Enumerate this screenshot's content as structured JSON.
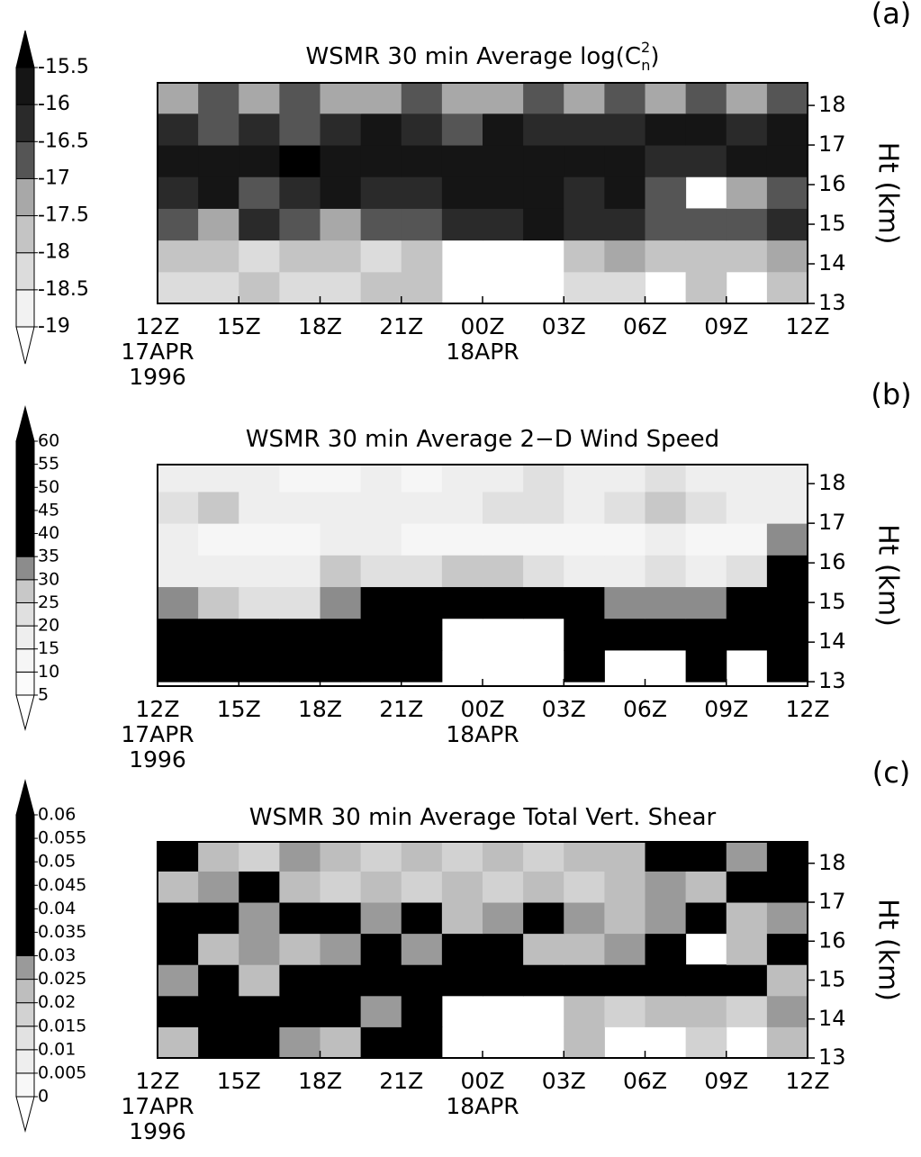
{
  "chart_data": [
    {
      "type": "heatmap",
      "panel_label": "(a)",
      "title": "WSMR 30 min Average log(C",
      "title_superscript": "2",
      "title_subscript": "n",
      "title_end": ")",
      "ylabel": "Ht (km)",
      "xbins": [
        0,
        1.5,
        3,
        4.5,
        6,
        7.5,
        9,
        10.5,
        12,
        13.5,
        15,
        16.5,
        18,
        19.5,
        21,
        22.5,
        24
      ],
      "ybins": [
        13,
        13.8,
        14.6,
        15.4,
        16.2,
        17,
        17.8,
        18.6
      ],
      "z": [
        [
          -18.5,
          -18.5,
          -18,
          -18.5,
          -18.5,
          -18,
          -18,
          null,
          null,
          null,
          -18.5,
          -18.5,
          null,
          -18,
          null,
          -18
        ],
        [
          -18,
          -18,
          -18.5,
          -18,
          -18,
          -18.5,
          -18,
          null,
          null,
          null,
          -18,
          -17.5,
          -18,
          -18,
          -18,
          -17.5
        ],
        [
          -17,
          -17.5,
          -16.5,
          -17,
          -17.5,
          -17,
          -17,
          -16.5,
          -16.5,
          -16,
          -16.5,
          -16.5,
          -17,
          -17,
          -17,
          -16.5
        ],
        [
          -16.5,
          -16,
          -17,
          -16.5,
          -16,
          -16.5,
          -16.5,
          -16,
          -16,
          -16,
          -16.5,
          -16,
          -17,
          null,
          -17.5,
          -17
        ],
        [
          -16,
          -16,
          -16,
          -15.5,
          -16,
          -16,
          -16,
          -16,
          -16,
          -16,
          -16,
          -16,
          -16.5,
          -16.5,
          -16,
          -16
        ],
        [
          -16.5,
          -17,
          -16.5,
          -17,
          -16.5,
          -16,
          -16.5,
          -17,
          -16,
          -16.5,
          -16.5,
          -16.5,
          -16,
          -16,
          -16.5,
          -16
        ],
        [
          -17.5,
          -17,
          -17.5,
          -17,
          -17.5,
          -17.5,
          -17,
          -17.5,
          -17.5,
          -17,
          -17.5,
          -17,
          -17.5,
          -17,
          -17.5,
          -17
        ]
      ],
      "levels": [
        -19,
        -18.5,
        -18,
        -17.5,
        -17,
        -16.5,
        -16,
        -15.5
      ],
      "colors": [
        "#ffffff",
        "#f2f2f2",
        "#dcdcdc",
        "#c4c4c4",
        "#a8a8a8",
        "#555555",
        "#2a2a2a",
        "#151515",
        "#000000"
      ],
      "xlim": [
        0,
        24
      ],
      "xticks": [
        {
          "value": 0,
          "label": "12Z"
        },
        {
          "value": 3,
          "label": "15Z"
        },
        {
          "value": 6,
          "label": "18Z"
        },
        {
          "value": 9,
          "label": "21Z"
        },
        {
          "value": 12,
          "label": "00Z"
        },
        {
          "value": 15,
          "label": "03Z"
        },
        {
          "value": 18,
          "label": "06Z"
        },
        {
          "value": 21,
          "label": "09Z"
        },
        {
          "value": 24,
          "label": "12Z"
        }
      ],
      "date_labels": [
        {
          "value": 0,
          "label": "17APR"
        },
        {
          "value": 0,
          "label": "1996"
        },
        {
          "value": 12,
          "label": "18APR"
        }
      ],
      "ylim": [
        13,
        18.57
      ],
      "yticks": [
        13,
        14,
        15,
        16,
        17,
        18
      ]
    },
    {
      "type": "heatmap",
      "panel_label": "(b)",
      "title": "WSMR 30 min Average 2−D Wind Speed",
      "ylabel": "Ht (km)",
      "xbins": [
        0,
        1.5,
        3,
        4.5,
        6,
        7.5,
        9,
        10.5,
        12,
        13.5,
        15,
        16.5,
        18,
        19.5,
        21,
        22.5,
        24
      ],
      "ybins": [
        13,
        13.8,
        14.6,
        15.4,
        16.2,
        17,
        17.8,
        18.6
      ],
      "z": [
        [
          45,
          45,
          45,
          40,
          45,
          45,
          50,
          null,
          null,
          null,
          45,
          null,
          null,
          45,
          null,
          50
        ],
        [
          40,
          40,
          40,
          40,
          45,
          45,
          50,
          null,
          null,
          null,
          45,
          45,
          45,
          40,
          45,
          50
        ],
        [
          30,
          25,
          20,
          20,
          30,
          35,
          40,
          40,
          40,
          40,
          35,
          30,
          30,
          30,
          35,
          50
        ],
        [
          15,
          15,
          15,
          15,
          25,
          20,
          20,
          25,
          25,
          20,
          15,
          15,
          20,
          15,
          20,
          45
        ],
        [
          15,
          10,
          10,
          10,
          15,
          15,
          10,
          10,
          10,
          10,
          10,
          10,
          15,
          10,
          10,
          30
        ],
        [
          20,
          25,
          15,
          15,
          15,
          15,
          15,
          15,
          20,
          20,
          15,
          20,
          25,
          20,
          15,
          15
        ],
        [
          15,
          15,
          15,
          10,
          10,
          15,
          10,
          15,
          15,
          20,
          15,
          15,
          20,
          15,
          15,
          15
        ]
      ],
      "levels": [
        5,
        10,
        15,
        20,
        25,
        30,
        35,
        40,
        45,
        50,
        55,
        60
      ],
      "colors": [
        "#ffffff",
        "#fbfbfb",
        "#f6f6f6",
        "#eeeeee",
        "#e0e0e0",
        "#c8c8c8",
        "#8c8c8c",
        "#000000",
        "#000000",
        "#000000",
        "#000000",
        "#000000",
        "#000000"
      ],
      "xlim": [
        0,
        24
      ],
      "xticks": [
        {
          "value": 0,
          "label": "12Z"
        },
        {
          "value": 3,
          "label": "15Z"
        },
        {
          "value": 6,
          "label": "18Z"
        },
        {
          "value": 9,
          "label": "21Z"
        },
        {
          "value": 12,
          "label": "00Z"
        },
        {
          "value": 15,
          "label": "03Z"
        },
        {
          "value": 18,
          "label": "06Z"
        },
        {
          "value": 21,
          "label": "09Z"
        },
        {
          "value": 24,
          "label": "12Z"
        }
      ],
      "date_labels": [
        {
          "value": 0,
          "label": "17APR"
        },
        {
          "value": 0,
          "label": "1996"
        },
        {
          "value": 12,
          "label": "18APR"
        }
      ],
      "ylim": [
        12.89,
        18.48
      ],
      "yticks": [
        13,
        14,
        15,
        16,
        17,
        18
      ]
    },
    {
      "type": "heatmap",
      "panel_label": "(c)",
      "title": "WSMR 30 min Average Total Vert. Shear",
      "ylabel": "Ht (km)",
      "xbins": [
        0,
        1.5,
        3,
        4.5,
        6,
        7.5,
        9,
        10.5,
        12,
        13.5,
        15,
        16.5,
        18,
        19.5,
        21,
        22.5,
        24
      ],
      "ybins": [
        13,
        13.8,
        14.6,
        15.4,
        16.2,
        17,
        17.8,
        18.6
      ],
      "z": [
        [
          0.02,
          0.035,
          0.03,
          0.025,
          0.02,
          0.03,
          0.035,
          null,
          null,
          null,
          0.02,
          null,
          null,
          0.015,
          null,
          0.02
        ],
        [
          0.035,
          0.04,
          0.035,
          0.03,
          0.035,
          0.025,
          0.03,
          null,
          null,
          null,
          0.02,
          0.015,
          0.02,
          0.02,
          0.015,
          0.025
        ],
        [
          0.025,
          0.03,
          0.02,
          0.035,
          0.03,
          0.035,
          0.04,
          0.045,
          0.04,
          0.035,
          0.045,
          0.04,
          0.04,
          0.035,
          0.03,
          0.02
        ],
        [
          0.035,
          0.02,
          0.025,
          0.02,
          0.025,
          0.03,
          0.025,
          0.03,
          0.035,
          0.02,
          0.02,
          0.025,
          0.03,
          null,
          0.02,
          0.03
        ],
        [
          0.04,
          0.035,
          0.025,
          0.03,
          0.035,
          0.025,
          0.03,
          0.02,
          0.025,
          0.03,
          0.025,
          0.02,
          0.025,
          0.03,
          0.02,
          0.025
        ],
        [
          0.02,
          0.025,
          0.03,
          0.02,
          0.015,
          0.02,
          0.015,
          0.02,
          0.015,
          0.02,
          0.015,
          0.02,
          0.025,
          0.02,
          0.035,
          0.03
        ],
        [
          0.03,
          0.02,
          0.015,
          0.025,
          0.02,
          0.015,
          0.02,
          0.015,
          0.02,
          0.015,
          0.02,
          0.02,
          0.03,
          0.035,
          0.025,
          0.035
        ]
      ],
      "levels": [
        0,
        0.005,
        0.01,
        0.015,
        0.02,
        0.025,
        0.03,
        0.035,
        0.04,
        0.045,
        0.05,
        0.055,
        0.06
      ],
      "colors": [
        "#ffffff",
        "#f8f8f8",
        "#eeeeee",
        "#e2e2e2",
        "#d2d2d2",
        "#bebebe",
        "#9a9a9a",
        "#000000",
        "#000000",
        "#000000",
        "#000000",
        "#000000",
        "#000000",
        "#000000"
      ],
      "xlim": [
        0,
        24
      ],
      "xticks": [
        {
          "value": 0,
          "label": "12Z"
        },
        {
          "value": 3,
          "label": "15Z"
        },
        {
          "value": 6,
          "label": "18Z"
        },
        {
          "value": 9,
          "label": "21Z"
        },
        {
          "value": 12,
          "label": "00Z"
        },
        {
          "value": 15,
          "label": "03Z"
        },
        {
          "value": 18,
          "label": "06Z"
        },
        {
          "value": 21,
          "label": "09Z"
        },
        {
          "value": 24,
          "label": "12Z"
        }
      ],
      "date_labels": [
        {
          "value": 0,
          "label": "17APR"
        },
        {
          "value": 0,
          "label": "1996"
        },
        {
          "value": 12,
          "label": "18APR"
        }
      ],
      "ylim": [
        13,
        18.55
      ],
      "yticks": [
        13,
        14,
        15,
        16,
        17,
        18
      ]
    }
  ]
}
